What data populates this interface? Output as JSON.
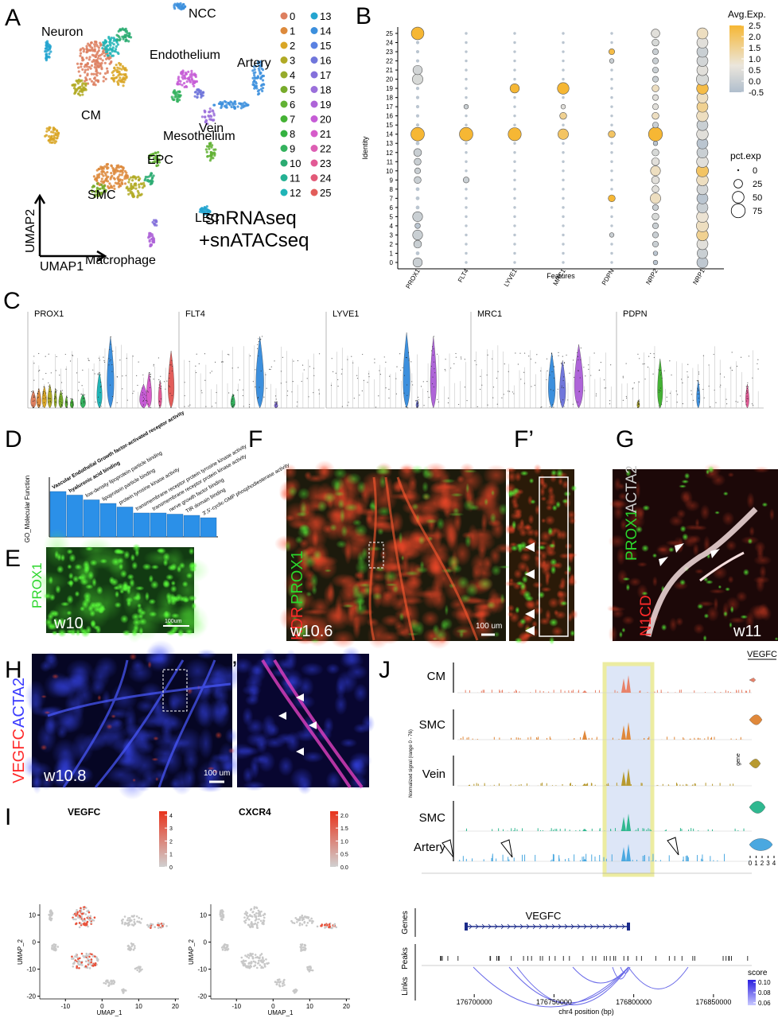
{
  "panel_a": {
    "letter": "A",
    "clusters": [
      "Neuron",
      "NCC",
      "CM",
      "Endothelium",
      "Artery",
      "Vein",
      "Mesothelium",
      "EPC",
      "SMC",
      "LEC",
      "Macrophage"
    ],
    "axis_y": "UMAP2",
    "axis_x": "UMAP1",
    "assay": [
      "snRNAseq",
      "+snATACseq"
    ],
    "legend": [
      "0",
      "1",
      "2",
      "3",
      "4",
      "5",
      "6",
      "7",
      "8",
      "9",
      "10",
      "11",
      "12",
      "13",
      "14",
      "15",
      "16",
      "17",
      "18",
      "19",
      "20",
      "21",
      "22",
      "23",
      "24",
      "25"
    ],
    "legend_colors": [
      "hsl(15,65%,62%)",
      "hsl(29,70%,55%)",
      "hsl(43,70%,50%)",
      "hsl(57,65%,42%)",
      "hsl(70,60%,42%)",
      "hsl(84,60%,42%)",
      "hsl(98,55%,45%)",
      "hsl(112,55%,45%)",
      "hsl(126,55%,45%)",
      "hsl(140,55%,45%)",
      "hsl(153,60%,42%)",
      "hsl(167,65%,42%)",
      "hsl(181,70%,42%)",
      "hsl(195,70%,48%)",
      "hsl(209,70%,55%)",
      "hsl(223,70%,62%)",
      "hsl(237,60%,65%)",
      "hsl(251,60%,65%)",
      "hsl(264,60%,65%)",
      "hsl(278,60%,62%)",
      "hsl(292,60%,60%)",
      "hsl(306,60%,60%)",
      "hsl(320,65%,62%)",
      "hsl(334,70%,62%)",
      "hsl(347,70%,62%)",
      "hsl(1,70%,62%)"
    ]
  },
  "panel_b": {
    "letter": "B",
    "y_title": "Identity",
    "x_title": "Features",
    "identities": [
      "0",
      "1",
      "2",
      "3",
      "4",
      "5",
      "6",
      "7",
      "8",
      "9",
      "10",
      "11",
      "12",
      "13",
      "14",
      "15",
      "16",
      "17",
      "18",
      "19",
      "20",
      "21",
      "22",
      "23",
      "24",
      "25"
    ],
    "features": [
      {
        "name": "PROX1",
        "pct": [
          30,
          3,
          20,
          35,
          8,
          35,
          3,
          3,
          3,
          15,
          10,
          15,
          20,
          3,
          70,
          2,
          2,
          2,
          2,
          2,
          40,
          30,
          2,
          2,
          2,
          60
        ],
        "avg": [
          0,
          -0.3,
          0,
          0,
          -0.3,
          0,
          -0.3,
          -0.3,
          -0.3,
          0,
          0,
          0,
          0,
          -0.3,
          2.5,
          -0.3,
          -0.3,
          -0.3,
          -0.3,
          -0.3,
          0.3,
          0.2,
          -0.3,
          -0.3,
          -0.3,
          2.5
        ]
      },
      {
        "name": "FLT4",
        "pct": [
          1,
          1,
          1,
          1,
          1,
          1,
          1,
          1,
          1,
          10,
          1,
          1,
          1,
          1,
          70,
          1,
          1,
          5,
          1,
          1,
          1,
          1,
          1,
          1,
          1,
          1
        ],
        "avg": [
          -0.3,
          -0.3,
          -0.3,
          -0.3,
          -0.3,
          -0.3,
          -0.3,
          -0.3,
          -0.3,
          0,
          -0.3,
          -0.3,
          -0.3,
          -0.3,
          2.5,
          -0.3,
          -0.3,
          0,
          -0.3,
          -0.3,
          -0.3,
          -0.3,
          -0.3,
          -0.3,
          -0.3,
          -0.3
        ]
      },
      {
        "name": "LYVE1",
        "pct": [
          1,
          1,
          1,
          1,
          1,
          1,
          1,
          1,
          1,
          1,
          1,
          1,
          1,
          1,
          65,
          1,
          1,
          1,
          1,
          30,
          1,
          1,
          1,
          1,
          1,
          1
        ],
        "avg": [
          -0.3,
          -0.3,
          -0.3,
          -0.3,
          -0.3,
          -0.3,
          -0.3,
          -0.3,
          -0.3,
          -0.3,
          -0.3,
          -0.3,
          -0.3,
          -0.3,
          2.5,
          -0.3,
          -0.3,
          -0.3,
          -0.3,
          2.5,
          -0.3,
          -0.3,
          -0.3,
          -0.3,
          -0.3,
          -0.3
        ]
      },
      {
        "name": "MRC1",
        "pct": [
          1,
          1,
          1,
          1,
          1,
          1,
          1,
          1,
          1,
          1,
          1,
          1,
          1,
          1,
          40,
          1,
          15,
          5,
          1,
          50,
          1,
          1,
          1,
          1,
          1,
          1
        ],
        "avg": [
          -0.3,
          -0.3,
          -0.3,
          -0.3,
          -0.3,
          -0.3,
          -0.3,
          -0.3,
          -0.3,
          -0.3,
          -0.3,
          -0.3,
          -0.3,
          -0.3,
          2,
          -0.3,
          1.5,
          0.5,
          -0.3,
          2.5,
          -0.3,
          -0.3,
          -0.3,
          -0.3,
          -0.3,
          -0.3
        ]
      },
      {
        "name": "PDPN",
        "pct": [
          1,
          1,
          1,
          5,
          1,
          1,
          1,
          15,
          1,
          1,
          1,
          1,
          1,
          1,
          15,
          1,
          1,
          1,
          1,
          1,
          1,
          1,
          5,
          10,
          1,
          1
        ],
        "avg": [
          -0.3,
          -0.3,
          -0.3,
          0,
          -0.3,
          -0.3,
          -0.3,
          2.5,
          -0.3,
          -0.3,
          -0.3,
          -0.3,
          -0.3,
          -0.3,
          2,
          -0.3,
          -0.3,
          -0.3,
          -0.3,
          -0.3,
          -0.3,
          -0.3,
          0,
          2.3,
          -0.3,
          -0.3
        ]
      },
      {
        "name": "NRP2",
        "pct": [
          5,
          5,
          10,
          10,
          10,
          15,
          10,
          40,
          15,
          20,
          35,
          20,
          15,
          5,
          75,
          10,
          15,
          10,
          10,
          15,
          10,
          10,
          10,
          10,
          15,
          25
        ],
        "avg": [
          -0.3,
          -0.3,
          0,
          0,
          0,
          0.3,
          0,
          1,
          0.5,
          0.5,
          1,
          0.5,
          0.3,
          -0.3,
          2.5,
          0,
          1,
          0.5,
          0.5,
          1,
          0,
          0,
          0,
          0,
          0.3,
          0.5
        ]
      },
      {
        "name": "NRP1",
        "pct": [
          45,
          40,
          45,
          50,
          55,
          50,
          45,
          45,
          45,
          50,
          55,
          50,
          45,
          45,
          50,
          45,
          50,
          45,
          45,
          50,
          55,
          45,
          45,
          45,
          45,
          45
        ],
        "avg": [
          -0.2,
          0,
          0.5,
          1.5,
          1,
          0.8,
          0,
          -0.3,
          0.2,
          1,
          2,
          0.5,
          0,
          -0.3,
          0.5,
          0,
          1,
          1.5,
          1,
          2.3,
          0.3,
          0.5,
          0.2,
          0,
          0.5,
          1
        ]
      }
    ],
    "color_title": "Avg.Exp.",
    "color_lim": [
      -0.5,
      2.5
    ],
    "color_ticks": [
      {
        "value": 2.5,
        "label": "2.5"
      },
      {
        "value": 2,
        "label": "2.0"
      },
      {
        "value": 1.5,
        "label": "1.5"
      },
      {
        "value": 1,
        "label": "1.0"
      },
      {
        "value": 0.5,
        "label": "0.5"
      },
      {
        "value": 0,
        "label": "0.0"
      },
      {
        "value": -0.5,
        "label": "-0.5"
      }
    ],
    "size_title": "pct.exp",
    "size_ticks": [
      0,
      25,
      50,
      75
    ]
  },
  "panel_c": {
    "letter": "C",
    "genes": [
      "PROX1",
      "FLT4",
      "LYVE1",
      "MRC1",
      "PDPN"
    ]
  },
  "panel_d": {
    "letter": "D",
    "y_title": "GO_Molecular Function",
    "terms": [
      {
        "label": "Vascular Endothelial Growth factor-activated receptor activity",
        "value": 3.8
      },
      {
        "label": "hyaluronic acid binding",
        "value": 3.5
      },
      {
        "label": "low-density lipoprotein particle binding",
        "value": 3.1
      },
      {
        "label": "lipoprotein particle binding",
        "value": 2.8
      },
      {
        "label": "protein tyrosine kinase activity",
        "value": 2.5
      },
      {
        "label": "transmembrane receptor protein tyrosine kinase activity",
        "value": 2.0
      },
      {
        "label": "transmembrane receptor protein kinase activity",
        "value": 2.0
      },
      {
        "label": "nerve growth factor binding",
        "value": 1.9
      },
      {
        "label": "TIR domain binding",
        "value": 1.8
      },
      {
        "label": "3',5'-cyclic-GMP phosphodiesterase activity",
        "value": 1.6
      }
    ]
  },
  "panel_e": {
    "letter": "E",
    "stain": "PROX1",
    "age": "w10",
    "scale": "100um"
  },
  "panel_f": {
    "letter": "F",
    "stains": [
      "KDR",
      "PROX1"
    ],
    "age": "w10.6",
    "scale": "100 um",
    "inset_letter": "F’"
  },
  "panel_g": {
    "letter": "G",
    "stains": [
      "PROX1",
      "ACTA2",
      "N1CD"
    ],
    "age": "w11"
  },
  "panel_h": {
    "letter": "H",
    "stains": [
      "VEGFC",
      "ACTA2"
    ],
    "age": "w10.8",
    "scale": "100 um",
    "inset_letter": "H’"
  },
  "panel_i": {
    "letter": "I",
    "x_title": "UMAP_1",
    "y_title": "UMAP_2",
    "xlim": [
      -17,
      21
    ],
    "ylim": [
      -21,
      14
    ],
    "xticks": [
      -10,
      0,
      10,
      20
    ],
    "yticks": [
      10,
      0,
      -10,
      -20
    ],
    "plots": [
      {
        "title": "VEGFC",
        "color_lim": [
          0,
          4.3
        ],
        "color_ticks": [
          4,
          3,
          2,
          1,
          0
        ]
      },
      {
        "title": "CXCR4",
        "color_lim": [
          0,
          2.15
        ],
        "color_ticks": [
          {
            "value": 2,
            "label": "2.0"
          },
          {
            "value": 1.5,
            "label": "1.5"
          },
          {
            "value": 1,
            "label": "1.0"
          },
          {
            "value": 0.5,
            "label": "0.5"
          },
          {
            "value": 0,
            "label": "0.0"
          }
        ]
      }
    ]
  },
  "panel_j": {
    "letter": "J",
    "tracks": [
      "CM",
      "SMC",
      "Vein",
      "SMC",
      "Artery"
    ],
    "y_title": "Normalized signal (range 0 - 76)",
    "rows": [
      "Genes",
      "Peaks",
      "Links"
    ],
    "gene": "VEGFC",
    "x_title": "chr4 position (bp)",
    "xlim": [
      176667000,
      176874000
    ],
    "xticks": [
      176700000,
      176750000,
      176800000,
      176850000
    ],
    "violin_title": "VEGFC",
    "violin_y": "gene",
    "violin_ticks": [
      0,
      1,
      2,
      3,
      4
    ],
    "score_title": "score",
    "score_lim": [
      0.055,
      0.105
    ],
    "score_ticks": [
      {
        "value": 0.1,
        "label": "0.10"
      },
      0.08,
      0.06
    ]
  }
}
